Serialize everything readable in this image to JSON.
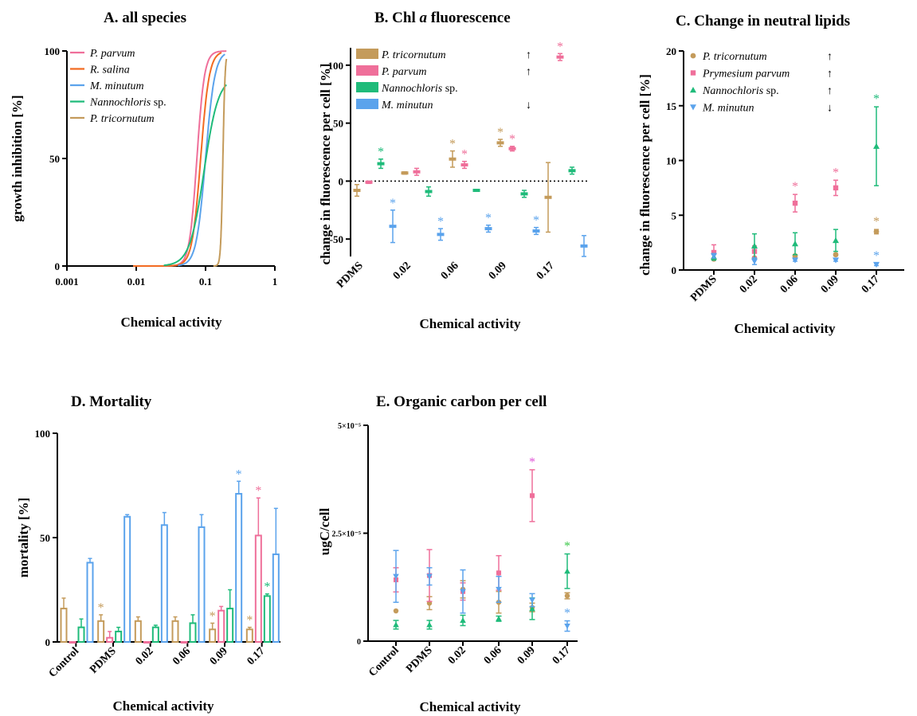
{
  "colors": {
    "tricornutum": "#c49b5b",
    "parvum": "#ef6f9a",
    "salina": "#f26b22",
    "minutum": "#5ba3ec",
    "nannochloris": "#1fbb7a",
    "greenstar": "#3fc94c",
    "magentastar": "#e053d6"
  },
  "chart_data": [
    {
      "id": "A",
      "type": "line",
      "title": "A.  all species",
      "xlabel": "Chemical activity",
      "ylabel": "growth inhibition [%]",
      "xscale": "log",
      "xlim": [
        0.001,
        1
      ],
      "ylim": [
        0,
        100
      ],
      "xticks": [
        "0.001",
        "0.01",
        "0.1",
        "1"
      ],
      "yticks": [
        "0",
        "50",
        "100"
      ],
      "legend": [
        {
          "name": "P. parvum",
          "italic": "P. parvum",
          "rest": "",
          "color": "parvum"
        },
        {
          "name": "R.  salina",
          "italic": "R.  salina",
          "rest": "",
          "color": "salina"
        },
        {
          "name": "M.  minutum",
          "italic": "M.  minutum",
          "rest": "",
          "color": "minutum"
        },
        {
          "name": "Nannochloris sp.",
          "italic": "Nannochloris",
          "rest": " sp.",
          "color": "nannochloris"
        },
        {
          "name": "P. tricornutum",
          "italic": "P. tricornutum",
          "rest": "",
          "color": "tricornutum"
        }
      ],
      "curves": [
        {
          "color": "parvum",
          "ec50": 0.075,
          "slope": 8,
          "top": 100,
          "xmin": 0.009,
          "xmax": 0.2
        },
        {
          "color": "salina",
          "ec50": 0.085,
          "slope": 7,
          "top": 100,
          "xmin": 0.009,
          "xmax": 0.17
        },
        {
          "color": "minutum",
          "ec50": 0.1,
          "slope": 6.5,
          "top": 100,
          "xmin": 0.04,
          "xmax": 0.19
        },
        {
          "color": "nannochloris",
          "ec50": 0.095,
          "slope": 4.2,
          "top": 88,
          "xmin": 0.025,
          "xmax": 0.2
        },
        {
          "color": "tricornutum",
          "ec50": 0.178,
          "slope": 28,
          "top": 100,
          "xmin": 0.13,
          "xmax": 0.2
        }
      ]
    },
    {
      "id": "B",
      "type": "bar",
      "title_pre": "B.  Chl ",
      "title_it": "a",
      "title_post": " fluorescence",
      "xlabel": "Chemical activity",
      "ylabel": "change in fluorescence per cell [%]",
      "ylim": [
        -65,
        115
      ],
      "yticks": [
        "-50",
        "0",
        "50",
        "100"
      ],
      "categories": [
        "PDMS",
        "0.02",
        "0.06",
        "0.09",
        "0.17"
      ],
      "legend": [
        {
          "italic": "P.  tricornutum",
          "rest": "",
          "arrow": "↑",
          "color": "tricornutum"
        },
        {
          "italic": "P. parvum",
          "rest": "",
          "arrow": "↑",
          "color": "parvum"
        },
        {
          "italic": "Nannochloris",
          "rest": " sp.",
          "arrow": "",
          "color": "nannochloris"
        },
        {
          "italic": "M. minutun",
          "rest": "",
          "arrow": "↓",
          "color": "minutum"
        }
      ],
      "series": [
        {
          "color": "tricornutum",
          "values": [
            -8,
            7,
            19,
            33,
            -14
          ],
          "err": [
            5,
            1,
            7,
            3,
            30
          ],
          "sig": [
            false,
            false,
            true,
            true,
            false
          ]
        },
        {
          "color": "parvum",
          "values": [
            -1,
            8,
            14,
            28,
            107
          ],
          "err": [
            1,
            3,
            3,
            2,
            3
          ],
          "sig": [
            false,
            false,
            true,
            true,
            true
          ]
        },
        {
          "color": "nannochloris",
          "values": [
            15,
            -9,
            -8,
            -11,
            9
          ],
          "err": [
            4,
            4,
            0.5,
            3,
            3
          ],
          "sig": [
            true,
            false,
            false,
            false,
            false
          ]
        },
        {
          "color": "minutum",
          "values": [
            -39,
            -46,
            -41,
            -43,
            -56
          ],
          "err": [
            14,
            5,
            3,
            3,
            9
          ],
          "sig": [
            true,
            true,
            true,
            true,
            false
          ]
        }
      ]
    },
    {
      "id": "C",
      "type": "scatter",
      "title": "C.  Change in neutral lipids",
      "xlabel": "Chemical activity",
      "ylabel": "change in fluorescence per cell [%]",
      "ylim": [
        0,
        20
      ],
      "yticks": [
        "0",
        "5",
        "10",
        "15",
        "20"
      ],
      "categories": [
        "PDMS",
        "0.02",
        "0.06",
        "0.09",
        "0.17"
      ],
      "legend": [
        {
          "italic": "P. tricornutum",
          "rest": "",
          "arrow": "↑",
          "color": "tricornutum",
          "marker": "circle"
        },
        {
          "italic": "Prymesium parvum",
          "rest": "",
          "arrow": "↑",
          "color": "parvum",
          "marker": "square"
        },
        {
          "italic": "Nannochloris",
          "rest": " sp.",
          "arrow": "↑",
          "color": "nannochloris",
          "marker": "triangle"
        },
        {
          "italic": "M. minutun",
          "rest": "",
          "arrow": "↓",
          "color": "minutum",
          "marker": "invtriangle"
        }
      ],
      "series": [
        {
          "color": "tricornutum",
          "marker": "circle",
          "values": [
            1.0,
            1.1,
            1.3,
            1.4,
            3.5
          ],
          "err": [
            0.1,
            0.1,
            0.1,
            0.1,
            0.2
          ],
          "sig": [
            false,
            false,
            false,
            false,
            true
          ]
        },
        {
          "color": "parvum",
          "marker": "square",
          "values": [
            1.6,
            1.7,
            6.1,
            7.5,
            0
          ],
          "err": [
            0.7,
            0.5,
            0.8,
            0.7,
            0
          ],
          "sig": [
            false,
            false,
            true,
            true,
            false
          ],
          "present": [
            true,
            true,
            true,
            true,
            false
          ]
        },
        {
          "color": "nannochloris",
          "marker": "triangle",
          "values": [
            1.2,
            2.2,
            2.4,
            2.7,
            11.3
          ],
          "err": [
            0.3,
            1.1,
            1.0,
            1.0,
            3.6
          ],
          "sig": [
            false,
            false,
            false,
            false,
            true
          ]
        },
        {
          "color": "minutum",
          "marker": "invtriangle",
          "values": [
            1.3,
            0.8,
            0.9,
            0.9,
            0.5
          ],
          "err": [
            0.2,
            0.3,
            0.1,
            0.1,
            0.1
          ],
          "sig": [
            false,
            false,
            false,
            false,
            true
          ]
        }
      ]
    },
    {
      "id": "D",
      "type": "bar",
      "title": "D.  Mortality",
      "xlabel": "Chemical activity",
      "ylabel": "mortality [%]",
      "ylim": [
        0,
        100
      ],
      "yticks": [
        "0",
        "50",
        "100"
      ],
      "categories": [
        "Control",
        "PDMS",
        "0.02",
        "0.06",
        "0.09",
        "0.17"
      ],
      "series": [
        {
          "color": "tricornutum",
          "values": [
            16,
            10,
            10,
            10,
            6,
            6
          ],
          "err": [
            5,
            3,
            2,
            2,
            3,
            1
          ],
          "sig": [
            false,
            true,
            false,
            false,
            true,
            true
          ]
        },
        {
          "color": "parvum",
          "values": [
            0,
            2,
            0,
            0,
            15,
            51
          ],
          "err": [
            0,
            3,
            0,
            0,
            2,
            18
          ],
          "sig": [
            false,
            false,
            false,
            false,
            false,
            true
          ]
        },
        {
          "color": "nannochloris",
          "values": [
            7,
            5,
            7,
            9,
            16,
            22
          ],
          "err": [
            4,
            2,
            1,
            4,
            9,
            1
          ],
          "sig": [
            false,
            false,
            false,
            false,
            false,
            true
          ]
        },
        {
          "color": "minutum",
          "values": [
            38,
            60,
            56,
            55,
            71,
            42
          ],
          "err": [
            2,
            1,
            6,
            6,
            6,
            22
          ],
          "sig": [
            false,
            false,
            false,
            false,
            true,
            false
          ]
        }
      ]
    },
    {
      "id": "E",
      "type": "scatter",
      "title": "E.  Organic carbon per cell",
      "xlabel": "Chemical activity",
      "ylabel": "ugC/cell",
      "ylim": [
        0,
        5e-05
      ],
      "yticks": [
        "0",
        "2.5×10⁻⁵",
        "5×10⁻⁵"
      ],
      "categories": [
        "Control",
        "PDMS",
        "0.02",
        "0.06",
        "0.09",
        "0.17"
      ],
      "series": [
        {
          "color": "tricornutum",
          "marker": "circle",
          "values": [
            7e-06,
            8.8e-06,
            1.2e-05,
            9e-06,
            7.8e-06,
            1.05e-05
          ],
          "err": [
            0,
            1.5e-06,
            2e-06,
            2.5e-06,
            1e-06,
            7e-07
          ],
          "sig": [
            false,
            false,
            false,
            false,
            false,
            false
          ]
        },
        {
          "color": "parvum",
          "marker": "square",
          "values": [
            1.42e-05,
            1.52e-05,
            1.15e-05,
            1.58e-05,
            3.37e-05,
            0
          ],
          "err": [
            2.8e-06,
            6e-06,
            2e-06,
            4e-06,
            6e-06,
            0
          ],
          "sig": [
            false,
            false,
            false,
            false,
            true,
            false
          ],
          "present": [
            true,
            true,
            true,
            true,
            true,
            false
          ],
          "sigcolor": "magentastar"
        },
        {
          "color": "nannochloris",
          "marker": "triangle",
          "values": [
            3.8e-06,
            3.8e-06,
            4.8e-06,
            5.2e-06,
            7.5e-06,
            1.62e-05
          ],
          "err": [
            1e-06,
            1e-06,
            1.2e-06,
            6e-07,
            2.5e-06,
            4e-06
          ],
          "sig": [
            false,
            false,
            false,
            false,
            false,
            true
          ],
          "sigcolor": "greenstar"
        },
        {
          "color": "minutum",
          "marker": "invtriangle",
          "values": [
            1.5e-05,
            1.5e-05,
            1.15e-05,
            1.2e-05,
            9.5e-06,
            3.5e-06
          ],
          "err": [
            6e-06,
            2e-06,
            5e-06,
            3e-06,
            1.5e-06,
            1.2e-06
          ],
          "sig": [
            false,
            false,
            false,
            false,
            false,
            true
          ]
        }
      ]
    }
  ]
}
